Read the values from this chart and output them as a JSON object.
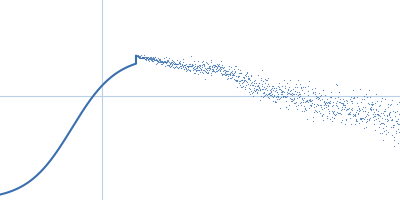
{
  "line_color": "#3a6faf",
  "scatter_color": "#3a6faf",
  "bg_color": "#ffffff",
  "grid_color": "#b8d0e8",
  "grid_linewidth": 0.8,
  "figsize": [
    4.0,
    2.0
  ],
  "dpi": 100,
  "seed": 42,
  "vline_x": 0.255,
  "hline_y": 0.52,
  "xlim": [
    0.0,
    1.0
  ],
  "ylim": [
    0.0,
    1.0
  ]
}
